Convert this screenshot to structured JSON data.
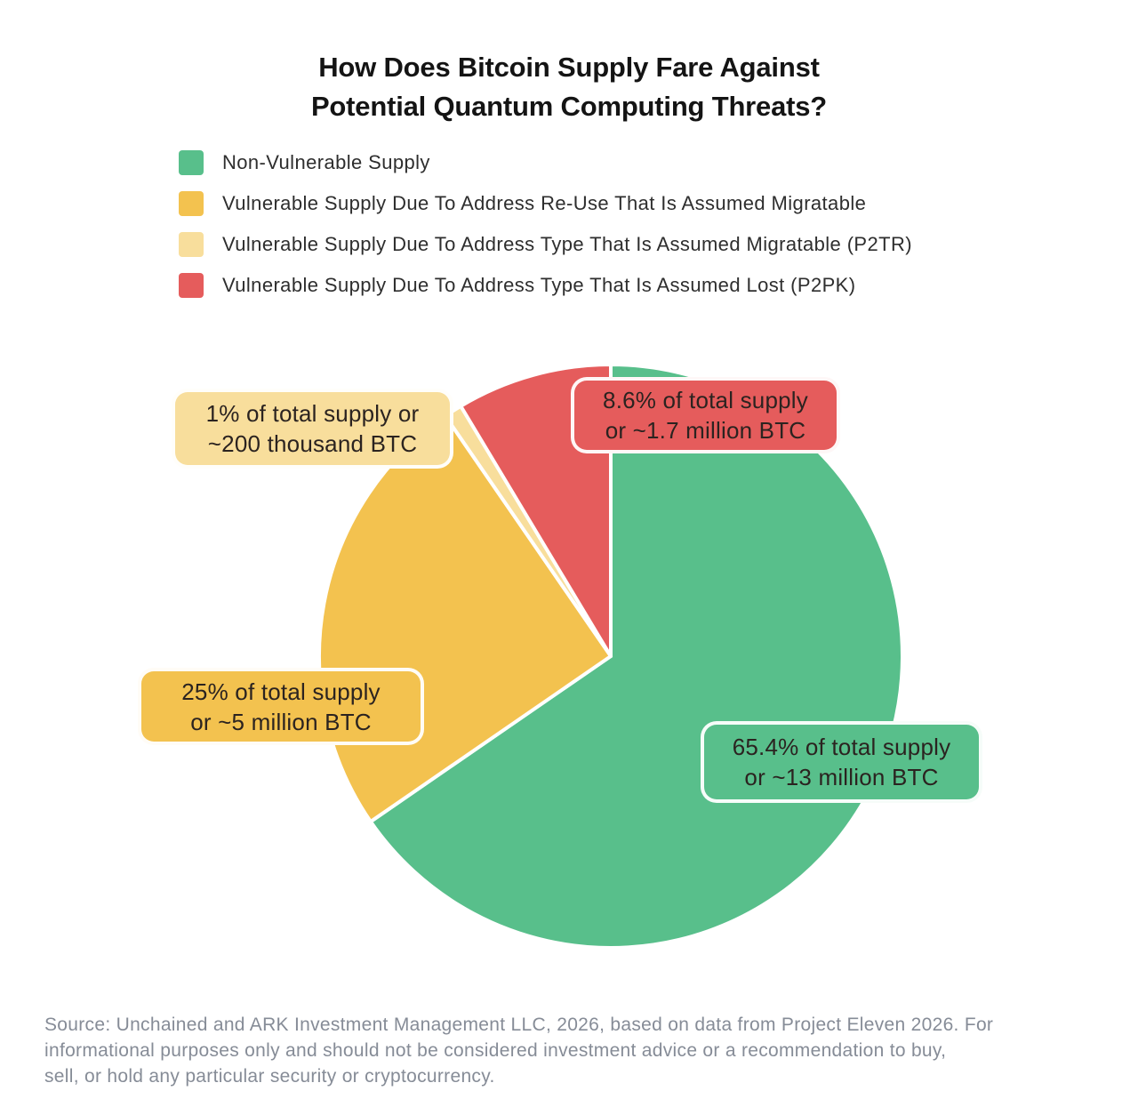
{
  "title": {
    "line1": "How Does Bitcoin Supply Fare Against",
    "line2": "Potential Quantum Computing Threats?"
  },
  "chart_data": {
    "type": "pie",
    "title": "How Does Bitcoin Supply Fare Against Potential Quantum Computing Threats?",
    "direction": "clockwise",
    "start_angle_deg": 0,
    "legend_position": "top-left",
    "total_percent": 100,
    "slices": [
      {
        "id": "non-vulnerable",
        "label": "Non-Vulnerable Supply",
        "percent": 65.4,
        "color": "#58BF8B",
        "callout": {
          "line1": "65.4% of total supply",
          "line2": "or ~13 million BTC"
        }
      },
      {
        "id": "reuse-migratable",
        "label": "Vulnerable Supply Due To Address Re-Use That Is Assumed Migratable",
        "percent": 25,
        "color": "#F3C24F",
        "callout": {
          "line1": "25% of total supply",
          "line2": "or ~5 million BTC"
        }
      },
      {
        "id": "p2tr-migratable",
        "label": "Vulnerable Supply Due To Address Type That Is Assumed Migratable (P2TR)",
        "percent": 1,
        "color": "#F8DE9C",
        "callout": {
          "line1": "1% of total supply or",
          "line2": "~200 thousand BTC"
        }
      },
      {
        "id": "p2pk-lost",
        "label": "Vulnerable Supply Due To Address Type That Is Assumed Lost (P2PK)",
        "percent": 8.6,
        "color": "#E55C5C",
        "callout": {
          "line1": "8.6% of total supply",
          "line2": "or ~1.7 million BTC"
        }
      }
    ],
    "stroke_color": "#FFFFFF"
  },
  "source": {
    "lines": [
      "Source: Unchained and ARK Investment Management LLC, 2026, based on data from Project Eleven 2026. For",
      "informational purposes only and should not be considered investment advice or a recommendation to buy,",
      "sell, or hold any particular security or cryptocurrency."
    ]
  }
}
